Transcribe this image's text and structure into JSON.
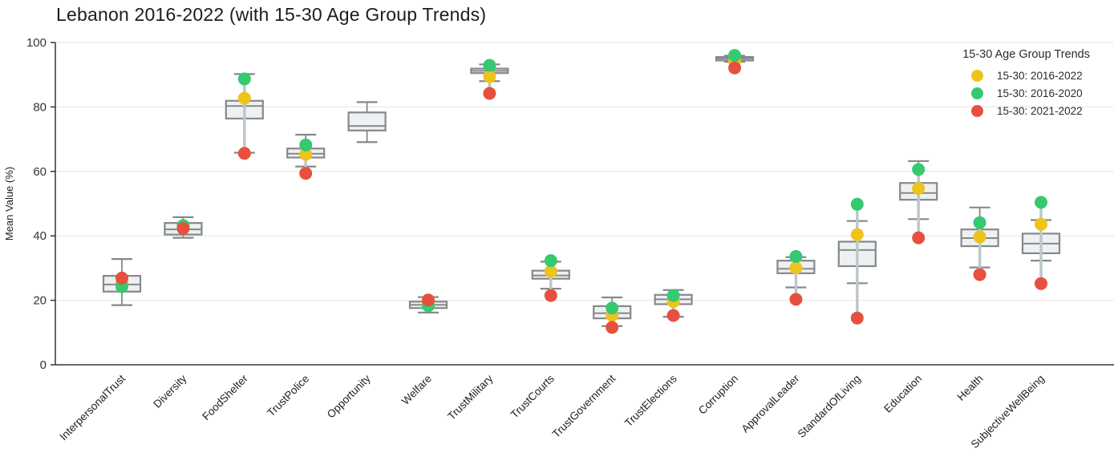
{
  "chart_data": {
    "type": "box",
    "title": "Lebanon 2016-2022 (with 15-30 Age Group Trends)",
    "ylabel": "Mean Value (%)",
    "ylim": [
      0,
      100
    ],
    "yticks": [
      0,
      20,
      40,
      60,
      80,
      100
    ],
    "grid": true,
    "legend": {
      "title": "15-30 Age Group Trends",
      "position": "top-right",
      "entries": [
        {
          "key": "overall",
          "label": "15-30: 2016-2022",
          "color": "#eec31c"
        },
        {
          "key": "early",
          "label": "15-30: 2016-2020",
          "color": "#34ca70"
        },
        {
          "key": "late",
          "label": "15-30: 2021-2022",
          "color": "#e6503e"
        }
      ]
    },
    "style": {
      "box_fill": "#eef1f2",
      "box_stroke": "#85898c",
      "connector": "#bdc7cb",
      "grid": "#ebebeb",
      "axis": "#333333",
      "tick_text": "#333333"
    },
    "categories": [
      {
        "label": "InterpersonalTrust",
        "box": {
          "low": 18.5,
          "q1": 22.7,
          "median": 24.9,
          "q3": 27.6,
          "high": 32.8
        },
        "points": {
          "overall": 25.4,
          "early": 24.3,
          "late": 26.9
        }
      },
      {
        "label": "Diversity",
        "box": {
          "low": 39.4,
          "q1": 40.4,
          "median": 42.0,
          "q3": 44.0,
          "high": 45.8
        },
        "points": {
          "overall": 42.5,
          "early": 43.2,
          "late": 42.3
        }
      },
      {
        "label": "FoodShelter",
        "box": {
          "low": 65.8,
          "q1": 76.4,
          "median": 80.3,
          "q3": 81.9,
          "high": 90.2
        },
        "points": {
          "overall": 82.7,
          "early": 88.7,
          "late": 65.6
        }
      },
      {
        "label": "TrustPolice",
        "box": {
          "low": 61.5,
          "q1": 64.3,
          "median": 65.5,
          "q3": 67.1,
          "high": 71.4
        },
        "points": {
          "overall": 65.3,
          "early": 68.2,
          "late": 59.4
        }
      },
      {
        "label": "Opportunity",
        "box": {
          "low": 69.1,
          "q1": 72.7,
          "median": 74.1,
          "q3": 78.3,
          "high": 81.5
        },
        "points": null
      },
      {
        "label": "Welfare",
        "box": {
          "low": 16.2,
          "q1": 17.6,
          "median": 18.6,
          "q3": 19.6,
          "high": 21.0
        },
        "points": {
          "overall": 19.4,
          "early": 18.3,
          "late": 20.1
        }
      },
      {
        "label": "TrustMilitary",
        "box": {
          "low": 88.0,
          "q1": 90.5,
          "median": 91.2,
          "q3": 91.9,
          "high": 93.2
        },
        "points": {
          "overall": 89.4,
          "early": 92.9,
          "late": 84.2
        }
      },
      {
        "label": "TrustCourts",
        "box": {
          "low": 23.6,
          "q1": 26.7,
          "median": 27.7,
          "q3": 29.2,
          "high": 32.0
        },
        "points": {
          "overall": 29.0,
          "early": 32.3,
          "late": 21.5
        }
      },
      {
        "label": "TrustGovernment",
        "box": {
          "low": 12.0,
          "q1": 14.4,
          "median": 16.0,
          "q3": 18.2,
          "high": 20.9
        },
        "points": {
          "overall": 15.3,
          "early": 17.6,
          "late": 11.6
        }
      },
      {
        "label": "TrustElections",
        "box": {
          "low": 14.9,
          "q1": 18.8,
          "median": 20.3,
          "q3": 21.7,
          "high": 23.2
        },
        "points": {
          "overall": 19.6,
          "early": 21.5,
          "late": 15.3
        }
      },
      {
        "label": "Corruption",
        "box": {
          "low": 94.0,
          "q1": 94.4,
          "median": 95.0,
          "q3": 95.5,
          "high": 95.9
        },
        "points": {
          "overall": 94.1,
          "early": 96.0,
          "late": 92.1
        }
      },
      {
        "label": "ApprovalLeader",
        "box": {
          "low": 24.0,
          "q1": 28.4,
          "median": 29.8,
          "q3": 32.3,
          "high": 33.4
        },
        "points": {
          "overall": 30.1,
          "early": 33.6,
          "late": 20.3
        }
      },
      {
        "label": "StandardOfLiving",
        "box": {
          "low": 25.3,
          "q1": 30.6,
          "median": 35.6,
          "q3": 38.2,
          "high": 44.6
        },
        "points": {
          "overall": 40.4,
          "early": 49.8,
          "late": 14.5
        }
      },
      {
        "label": "Education",
        "box": {
          "low": 45.2,
          "q1": 51.2,
          "median": 53.3,
          "q3": 56.4,
          "high": 63.2
        },
        "points": {
          "overall": 54.7,
          "early": 60.6,
          "late": 39.4
        }
      },
      {
        "label": "Health",
        "box": {
          "low": 30.2,
          "q1": 36.8,
          "median": 39.3,
          "q3": 42.0,
          "high": 48.8
        },
        "points": {
          "overall": 39.7,
          "early": 44.1,
          "late": 28.0
        }
      },
      {
        "label": "SubjectiveWellBeing",
        "box": {
          "low": 32.3,
          "q1": 34.6,
          "median": 37.6,
          "q3": 40.7,
          "high": 44.9
        },
        "points": {
          "overall": 43.6,
          "early": 50.4,
          "late": 25.2
        }
      }
    ]
  }
}
